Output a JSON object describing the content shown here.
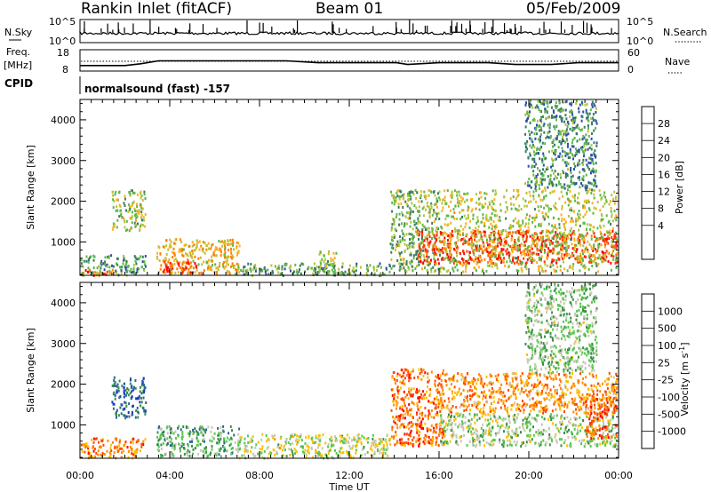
{
  "header": {
    "station": "Rankin Inlet (fitACF)",
    "beam": "Beam 01",
    "date": "05/Feb/2009"
  },
  "strips": {
    "nsky": {
      "label": "N.Sky",
      "right_label": "N.Search",
      "left_ticks": [
        "10^5",
        "10^0"
      ],
      "right_ticks": [
        "10^5",
        "10^0"
      ]
    },
    "freq": {
      "label_line1": "Freq.",
      "label_line2": "[MHz]",
      "right_label": "Nave",
      "left_ticks": [
        "18",
        "8"
      ],
      "right_ticks": [
        "60",
        "0"
      ],
      "freq_steps": [
        {
          "t": 0.0,
          "mhz": 10.6
        },
        {
          "t": 2.0,
          "mhz": 10.6
        },
        {
          "t": 2.7,
          "mhz": 11.4
        },
        {
          "t": 3.5,
          "mhz": 12.8
        },
        {
          "t": 9.2,
          "mhz": 12.8
        },
        {
          "t": 10.6,
          "mhz": 11.9
        },
        {
          "t": 14.1,
          "mhz": 11.9
        },
        {
          "t": 14.6,
          "mhz": 11.1
        },
        {
          "t": 16.0,
          "mhz": 11.9
        },
        {
          "t": 18.2,
          "mhz": 11.9
        },
        {
          "t": 19.4,
          "mhz": 11.1
        },
        {
          "t": 21.0,
          "mhz": 11.1
        },
        {
          "t": 22.2,
          "mhz": 11.9
        },
        {
          "t": 24.0,
          "mhz": 11.9
        }
      ]
    },
    "cpid": {
      "label": "CPID",
      "text": "normalsound (fast) -157"
    }
  },
  "axes": {
    "ylabel": "Slant Range [km]",
    "xlabel": "Time UT",
    "y_ticks": [
      "1000",
      "2000",
      "3000",
      "4000"
    ],
    "x_ticks": [
      "00:00",
      "04:00",
      "08:00",
      "12:00",
      "16:00",
      "20:00",
      "00:00"
    ]
  },
  "colors": {
    "power": [
      "#1a1aff",
      "#2d4fa8",
      "#3b7d62",
      "#5cb84a",
      "#b8c43a",
      "#ffb020",
      "#ff7f00",
      "#ff3a00",
      "#ff0000"
    ],
    "velocity": [
      "#ff0000",
      "#ff4a00",
      "#ff8a00",
      "#ffbf00",
      "#c8c8b4",
      "#5ac850",
      "#3b8f4a",
      "#2c6a8a",
      "#1a3fbf"
    ]
  },
  "chart_data": [
    {
      "type": "heatmap",
      "name": "power",
      "xlabel": "Time UT",
      "ylabel": "Slant Range [km]",
      "xlim": [
        0,
        24
      ],
      "ylim": [
        180,
        4500
      ],
      "colorbar": {
        "label": "Power [dB]",
        "range": [
          0,
          30
        ],
        "ticks": [
          "28",
          "24",
          "20",
          "16",
          "12",
          "8",
          "4"
        ]
      },
      "regions": [
        {
          "t0": 0.0,
          "t1": 2.9,
          "r0": 200,
          "r1": 700,
          "level": 0.35
        },
        {
          "t0": 0.1,
          "t1": 1.5,
          "r0": 200,
          "r1": 350,
          "level": 0.85
        },
        {
          "t0": 1.4,
          "t1": 2.9,
          "r0": 1300,
          "r1": 2300,
          "level": 0.45
        },
        {
          "t0": 3.4,
          "t1": 7.1,
          "r0": 220,
          "r1": 1100,
          "level": 0.6
        },
        {
          "t0": 3.6,
          "t1": 5.2,
          "r0": 250,
          "r1": 550,
          "level": 0.85
        },
        {
          "t0": 7.0,
          "t1": 13.8,
          "r0": 200,
          "r1": 500,
          "level": 0.35
        },
        {
          "t0": 10.6,
          "t1": 11.4,
          "r0": 250,
          "r1": 800,
          "level": 0.45
        },
        {
          "t0": 13.8,
          "t1": 16.0,
          "r0": 300,
          "r1": 2300,
          "level": 0.4
        },
        {
          "t0": 15.0,
          "t1": 23.9,
          "r0": 500,
          "r1": 1300,
          "level": 0.85
        },
        {
          "t0": 16.0,
          "t1": 23.9,
          "r0": 300,
          "r1": 2300,
          "level": 0.5
        },
        {
          "t0": 19.8,
          "t1": 23.0,
          "r0": 2300,
          "r1": 4500,
          "level": 0.3
        }
      ]
    },
    {
      "type": "heatmap",
      "name": "velocity",
      "xlabel": "Time UT",
      "ylabel": "Slant Range [km]",
      "xlim": [
        0,
        24
      ],
      "ylim": [
        180,
        4500
      ],
      "colorbar": {
        "label": "Velocity [m s^-1]",
        "range": [
          -1000,
          1000
        ],
        "ticks": [
          "1000",
          "500",
          "100",
          "25",
          "-25",
          "-100",
          "-500",
          "-1000"
        ]
      },
      "regions": [
        {
          "t0": 0.0,
          "t1": 2.9,
          "r0": 200,
          "r1": 700,
          "level": 0.25
        },
        {
          "t0": 1.4,
          "t1": 2.9,
          "r0": 1200,
          "r1": 2200,
          "level": 0.85
        },
        {
          "t0": 3.4,
          "t1": 7.1,
          "r0": 250,
          "r1": 1000,
          "level": 0.68
        },
        {
          "t0": 7.0,
          "t1": 13.8,
          "r0": 200,
          "r1": 800,
          "level": 0.5
        },
        {
          "t0": 13.8,
          "t1": 16.2,
          "r0": 500,
          "r1": 2400,
          "level": 0.22
        },
        {
          "t0": 16.0,
          "t1": 23.9,
          "r0": 500,
          "r1": 1300,
          "level": 0.55
        },
        {
          "t0": 16.0,
          "t1": 23.9,
          "r0": 1300,
          "r1": 2300,
          "level": 0.3
        },
        {
          "t0": 22.5,
          "t1": 23.9,
          "r0": 700,
          "r1": 1700,
          "level": 0.2
        },
        {
          "t0": 19.8,
          "t1": 23.0,
          "r0": 2300,
          "r1": 4500,
          "level": 0.6
        }
      ]
    }
  ]
}
